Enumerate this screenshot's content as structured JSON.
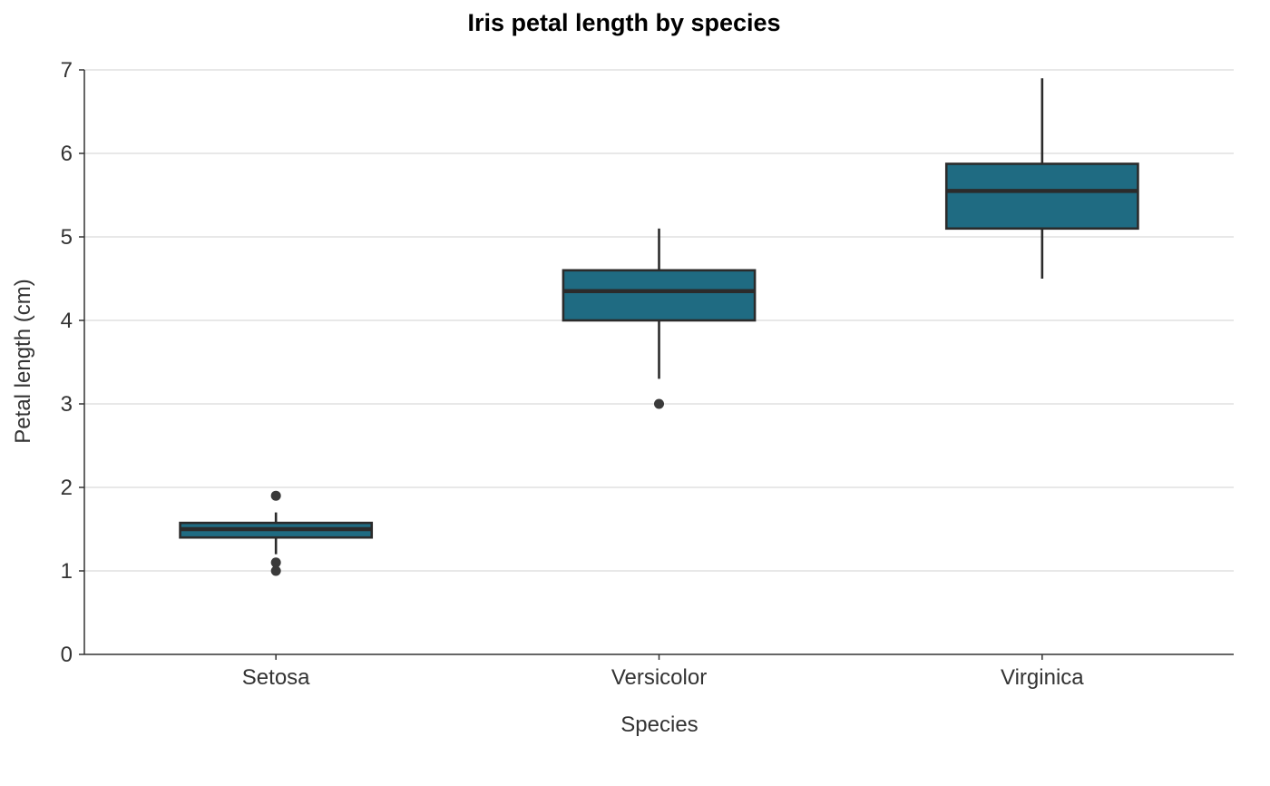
{
  "chart_data": {
    "type": "box",
    "title": "Iris petal length by species",
    "xlabel": "Species",
    "ylabel": "Petal length (cm)",
    "ylim": [
      0,
      7
    ],
    "yticks": [
      0,
      1,
      2,
      3,
      4,
      5,
      6,
      7
    ],
    "grid": "horizontal",
    "box_color": "#1f6b82",
    "edge_color": "#2b2b2b",
    "categories": [
      "Setosa",
      "Versicolor",
      "Virginica"
    ],
    "boxes": [
      {
        "category": "Setosa",
        "whisker_low": 1.2,
        "q1": 1.4,
        "median": 1.5,
        "q3": 1.575,
        "whisker_high": 1.7,
        "outliers": [
          1.9,
          1.1,
          1.0
        ]
      },
      {
        "category": "Versicolor",
        "whisker_low": 3.3,
        "q1": 4.0,
        "median": 4.35,
        "q3": 4.6,
        "whisker_high": 5.1,
        "outliers": [
          3.0
        ]
      },
      {
        "category": "Virginica",
        "whisker_low": 4.5,
        "q1": 5.1,
        "median": 5.55,
        "q3": 5.875,
        "whisker_high": 6.9,
        "outliers": []
      }
    ]
  }
}
